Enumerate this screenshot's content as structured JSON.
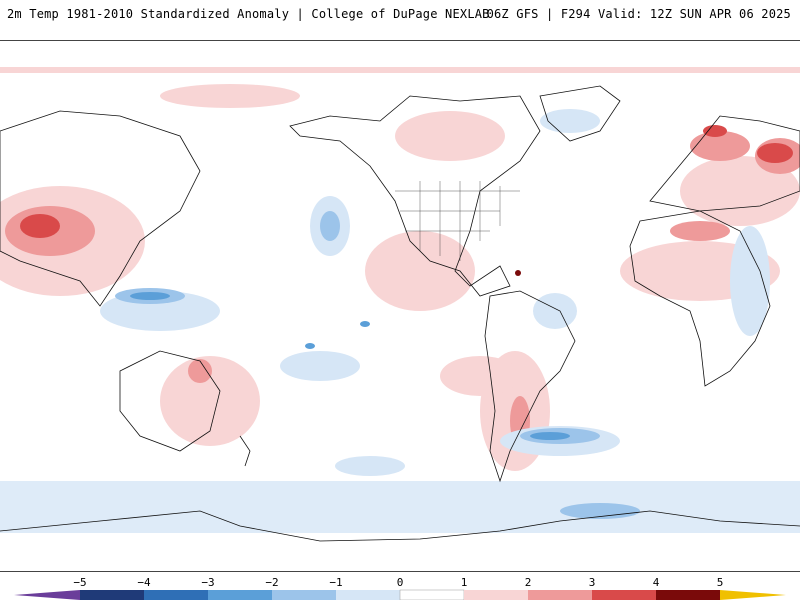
{
  "header": {
    "title": "2m Temp 1981-2010 Standardized Anomaly | College of DuPage NEXLAB",
    "run_info": "06Z GFS | F294 Valid: 12Z SUN APR 06 2025"
  },
  "colorbar": {
    "ticks": [
      "−5",
      "−4",
      "−3",
      "−2",
      "−1",
      "0",
      "1",
      "2",
      "3",
      "4",
      "5"
    ],
    "colors": {
      "below_min": "#6a3d9a",
      "n5": "#1f3a78",
      "n4": "#2f6fb6",
      "n3": "#5b9fd8",
      "n2": "#9cc4ea",
      "n1": "#d6e6f6",
      "zero": "#ffffff",
      "p1": "#f8d5d5",
      "p2": "#ee9a9a",
      "p3": "#d94a4a",
      "p4": "#b01a1a",
      "p5": "#7a0a0a",
      "above_max": "#f0c000"
    }
  }
}
